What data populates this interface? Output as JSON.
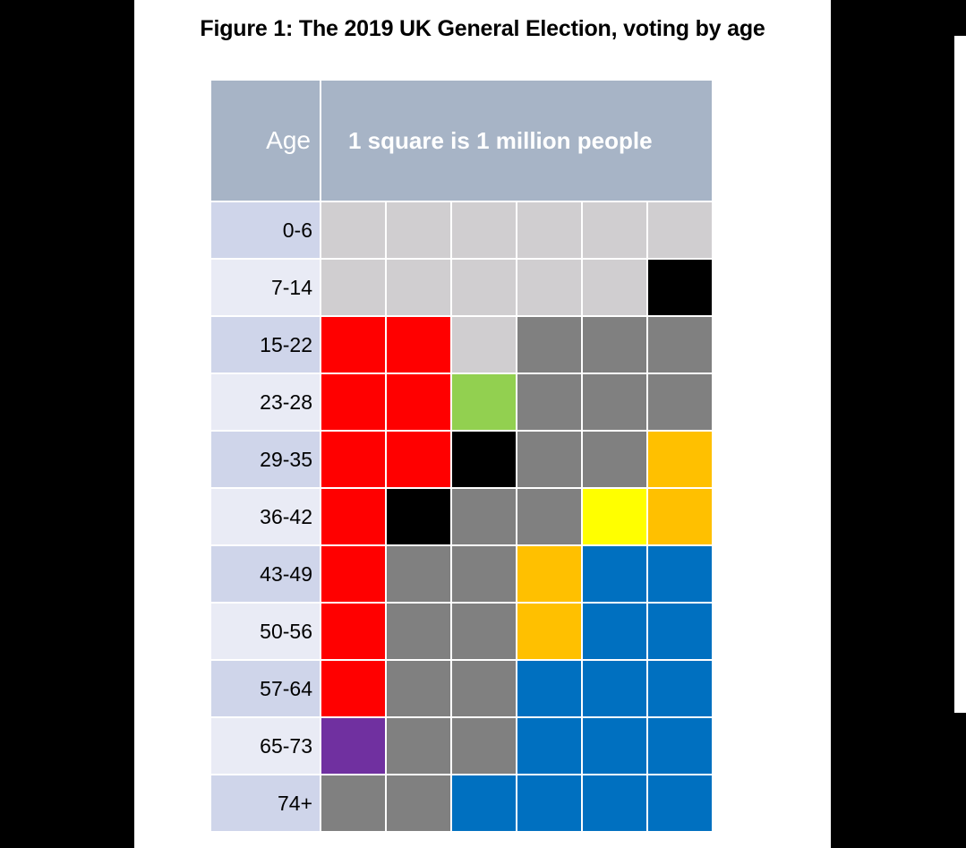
{
  "title": "Figure 1: The 2019 UK General Election, voting by age",
  "chart_data": {
    "type": "table",
    "title": "Figure 1: The 2019 UK General Election, voting by age",
    "header": {
      "age_label": "Age",
      "unit_note": "1 square is 1 million people"
    },
    "colors": {
      "not_eligible": "#d0ced0",
      "did_not_vote": "#808080",
      "labour": "#ff0000",
      "conservative": "#0070c0",
      "lib_dem": "#ffc000",
      "green": "#92d050",
      "snp": "#ffff00",
      "brexit": "#7030a0",
      "other": "#000000"
    },
    "rows": [
      {
        "age": "0-6",
        "squares": [
          "not_eligible",
          "not_eligible",
          "not_eligible",
          "not_eligible",
          "not_eligible",
          "not_eligible"
        ]
      },
      {
        "age": "7-14",
        "squares": [
          "not_eligible",
          "not_eligible",
          "not_eligible",
          "not_eligible",
          "not_eligible",
          "other"
        ]
      },
      {
        "age": "15-22",
        "squares": [
          "labour",
          "labour",
          "not_eligible",
          "did_not_vote",
          "did_not_vote",
          "did_not_vote"
        ]
      },
      {
        "age": "23-28",
        "squares": [
          "labour",
          "labour",
          "green",
          "did_not_vote",
          "did_not_vote",
          "did_not_vote"
        ]
      },
      {
        "age": "29-35",
        "squares": [
          "labour",
          "labour",
          "other",
          "did_not_vote",
          "did_not_vote",
          "lib_dem"
        ]
      },
      {
        "age": "36-42",
        "squares": [
          "labour",
          "other",
          "did_not_vote",
          "did_not_vote",
          "snp",
          "lib_dem"
        ]
      },
      {
        "age": "43-49",
        "squares": [
          "labour",
          "did_not_vote",
          "did_not_vote",
          "lib_dem",
          "conservative",
          "conservative"
        ]
      },
      {
        "age": "50-56",
        "squares": [
          "labour",
          "did_not_vote",
          "did_not_vote",
          "lib_dem",
          "conservative",
          "conservative"
        ]
      },
      {
        "age": "57-64",
        "squares": [
          "labour",
          "did_not_vote",
          "did_not_vote",
          "conservative",
          "conservative",
          "conservative"
        ]
      },
      {
        "age": "65-73",
        "squares": [
          "brexit",
          "did_not_vote",
          "did_not_vote",
          "conservative",
          "conservative",
          "conservative"
        ]
      },
      {
        "age": "74+",
        "squares": [
          "did_not_vote",
          "did_not_vote",
          "conservative",
          "conservative",
          "conservative",
          "conservative"
        ]
      }
    ]
  }
}
